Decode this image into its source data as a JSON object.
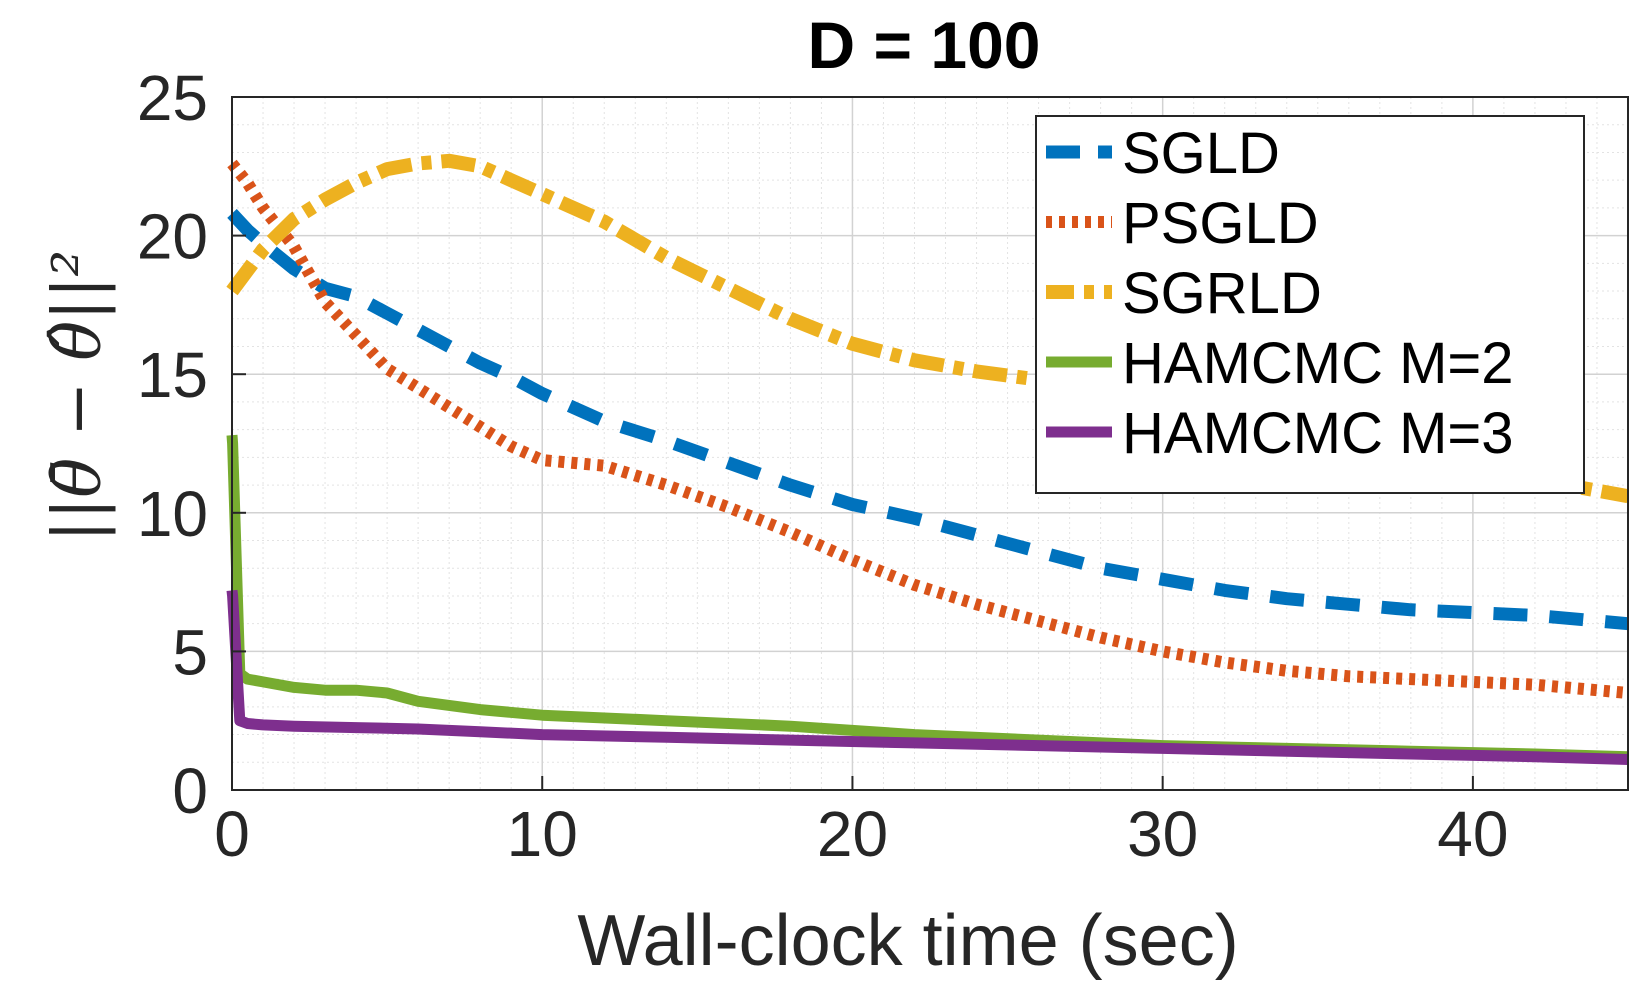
{
  "chart_data": {
    "type": "line",
    "title": "D = 100",
    "xlabel": "Wall-clock time (sec)",
    "ylabel": "||θ̄ − θ̂||²",
    "xlim": [
      0,
      45
    ],
    "ylim": [
      0,
      25
    ],
    "xticks": [
      0,
      10,
      20,
      30,
      40
    ],
    "yticks": [
      0,
      5,
      10,
      15,
      20,
      25
    ],
    "grid": "on (major and minor)",
    "legend_position": "top-right",
    "series": [
      {
        "name": "SGLD",
        "color": "#0072BD",
        "style": "dashed",
        "x": [
          0,
          0.5,
          1,
          2,
          3,
          4,
          5,
          6,
          7,
          8,
          9,
          10,
          12,
          14,
          16,
          18,
          20,
          22,
          24,
          26,
          28,
          30,
          32,
          34,
          36,
          38,
          40,
          42,
          44,
          45
        ],
        "y": [
          20.8,
          20.2,
          19.7,
          18.8,
          18.1,
          17.8,
          17.2,
          16.6,
          16.0,
          15.4,
          14.9,
          14.3,
          13.3,
          12.6,
          11.8,
          11.0,
          10.3,
          9.8,
          9.2,
          8.6,
          8.0,
          7.6,
          7.2,
          6.9,
          6.7,
          6.5,
          6.4,
          6.3,
          6.1,
          6.0
        ]
      },
      {
        "name": "PSGLD",
        "color": "#D95319",
        "style": "dotted",
        "x": [
          0,
          0.5,
          1,
          2,
          3,
          4,
          5,
          6,
          7,
          8,
          9,
          10,
          11,
          12,
          14,
          16,
          18,
          20,
          22,
          24,
          26,
          28,
          30,
          32,
          34,
          36,
          38,
          40,
          42,
          44,
          45
        ],
        "y": [
          22.6,
          21.9,
          21.0,
          19.6,
          17.6,
          16.4,
          15.2,
          14.5,
          13.8,
          13.1,
          12.4,
          11.9,
          11.8,
          11.7,
          11.0,
          10.2,
          9.3,
          8.3,
          7.4,
          6.7,
          6.1,
          5.5,
          5.0,
          4.6,
          4.3,
          4.1,
          4.0,
          3.9,
          3.8,
          3.6,
          3.5
        ]
      },
      {
        "name": "SGRLD",
        "color": "#EDB120",
        "style": "dash-dot",
        "x": [
          0,
          1,
          2,
          3,
          4,
          5,
          6,
          7,
          8,
          9,
          10,
          12,
          14,
          16,
          18,
          20,
          22,
          24,
          26,
          28,
          30,
          32,
          34,
          36,
          38,
          40,
          42,
          44,
          45
        ],
        "y": [
          18.0,
          19.5,
          20.6,
          21.3,
          21.9,
          22.4,
          22.6,
          22.7,
          22.5,
          22.0,
          21.5,
          20.5,
          19.2,
          18.1,
          17.0,
          16.1,
          15.5,
          15.1,
          14.8,
          14.4,
          14.0,
          13.5,
          13.0,
          12.5,
          12.0,
          11.6,
          11.2,
          10.8,
          10.6
        ]
      },
      {
        "name": "HAMCMC M=2",
        "color": "#77AC30",
        "style": "solid",
        "x": [
          0,
          0.02,
          0.25,
          0.5,
          1,
          2,
          3,
          4,
          5,
          6,
          8,
          10,
          14,
          18,
          22,
          26,
          30,
          34,
          38,
          42,
          45
        ],
        "y": [
          12.8,
          12.5,
          4.2,
          4.0,
          3.9,
          3.7,
          3.6,
          3.6,
          3.5,
          3.2,
          2.9,
          2.7,
          2.5,
          2.3,
          2.0,
          1.8,
          1.6,
          1.5,
          1.4,
          1.3,
          1.2
        ]
      },
      {
        "name": "HAMCMC M=3",
        "color": "#7E2F8E",
        "style": "solid",
        "x": [
          0,
          0.02,
          0.25,
          0.5,
          1,
          2,
          4,
          6,
          8,
          10,
          14,
          18,
          22,
          26,
          30,
          34,
          38,
          42,
          45
        ],
        "y": [
          7.2,
          7.0,
          2.5,
          2.4,
          2.35,
          2.3,
          2.25,
          2.2,
          2.1,
          2.0,
          1.9,
          1.8,
          1.7,
          1.6,
          1.5,
          1.4,
          1.3,
          1.2,
          1.1
        ]
      }
    ]
  }
}
